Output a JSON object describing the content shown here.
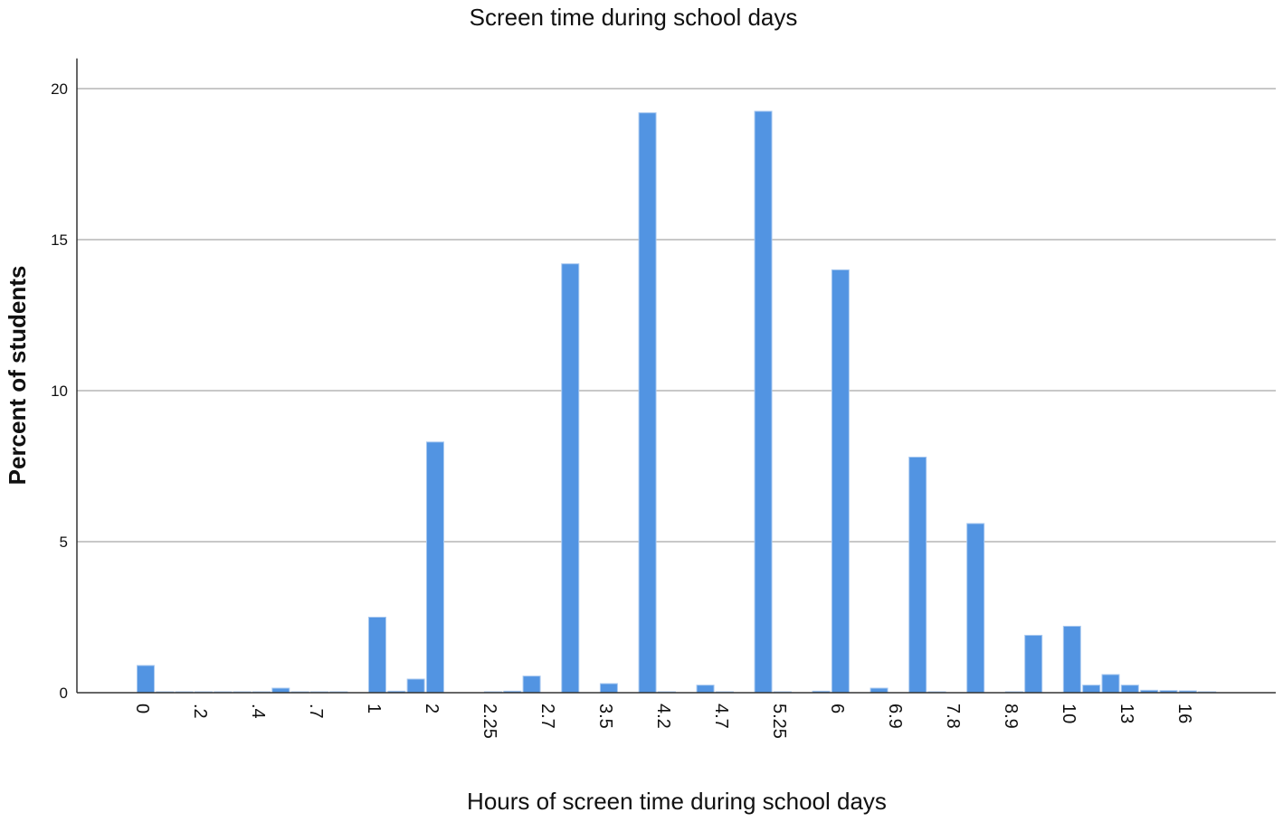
{
  "chart_data": {
    "type": "bar",
    "title": "Screen time during school days",
    "x_label": "Hours of screen time during school days",
    "y_label": "Percent of students",
    "categories": [
      "0",
      null,
      null,
      ".2",
      null,
      null,
      ".4",
      null,
      null,
      ".7",
      null,
      null,
      "1",
      null,
      null,
      "2",
      null,
      null,
      "2.25",
      null,
      null,
      "2.7",
      null,
      null,
      "3.5",
      null,
      null,
      "4.2",
      null,
      null,
      "4.7",
      null,
      null,
      "5.25",
      null,
      null,
      "6",
      null,
      null,
      "6.9",
      null,
      null,
      "7.8",
      null,
      null,
      "8.9",
      null,
      null,
      "10",
      null,
      null,
      "13",
      null,
      null,
      "16",
      null
    ],
    "values": [
      0.9,
      0.03,
      0.03,
      0.03,
      0.03,
      0.03,
      0.03,
      0.15,
      0.03,
      0.03,
      0.03,
      0,
      2.5,
      0.05,
      0.45,
      8.3,
      0,
      0,
      0.03,
      0.05,
      0.55,
      0,
      14.2,
      0,
      0.3,
      0,
      19.2,
      0.03,
      0,
      0.25,
      0.03,
      0,
      19.25,
      0.03,
      0,
      0.05,
      14.0,
      0,
      0.15,
      0,
      7.8,
      0.03,
      0,
      5.6,
      0,
      0.03,
      1.9,
      0,
      2.2,
      0.25,
      0.6,
      0.25,
      0.08,
      0.07,
      0.06,
      0.03
    ],
    "color": "#5294e2",
    "ylim": [
      0,
      21
    ],
    "yticks": [
      0,
      5,
      10,
      15,
      20
    ],
    "grid": true
  }
}
